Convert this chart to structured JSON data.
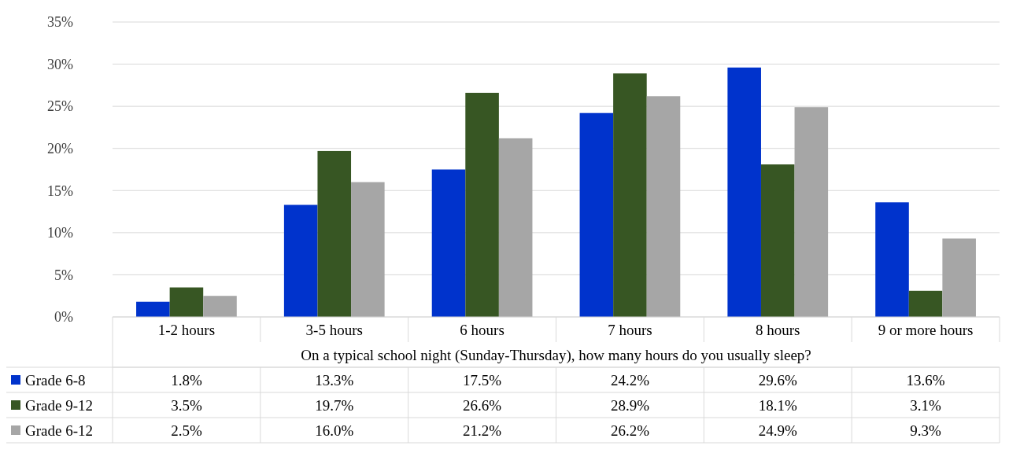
{
  "chart_data": {
    "type": "bar",
    "categories": [
      "1-2 hours",
      "3-5 hours",
      "6 hours",
      "7 hours",
      "8 hours",
      "9 or more hours"
    ],
    "xlabel": "On a typical school night (Sunday-Thursday), how many hours do you usually sleep?",
    "series": [
      {
        "name": "Grade 6-8",
        "color": "#0033cc",
        "values": [
          1.8,
          13.3,
          17.5,
          24.2,
          29.6,
          13.6
        ],
        "value_labels": [
          "1.8%",
          "13.3%",
          "17.5%",
          "24.2%",
          "29.6%",
          "13.6%"
        ]
      },
      {
        "name": "Grade 9-12",
        "color": "#375623",
        "values": [
          3.5,
          19.7,
          26.6,
          28.9,
          18.1,
          3.1
        ],
        "value_labels": [
          "3.5%",
          "19.7%",
          "26.6%",
          "28.9%",
          "18.1%",
          "3.1%"
        ]
      },
      {
        "name": "Grade 6-12",
        "color": "#a6a6a6",
        "values": [
          2.5,
          16.0,
          21.2,
          26.2,
          24.9,
          9.3
        ],
        "value_labels": [
          "2.5%",
          "16.0%",
          "21.2%",
          "26.2%",
          "24.9%",
          "9.3%"
        ]
      }
    ],
    "ylim": [
      0,
      35
    ],
    "yticks": [
      {
        "value": 0,
        "label": "0%"
      },
      {
        "value": 5,
        "label": "5%"
      },
      {
        "value": 10,
        "label": "10%"
      },
      {
        "value": 15,
        "label": "15%"
      },
      {
        "value": 20,
        "label": "20%"
      },
      {
        "value": 25,
        "label": "25%"
      },
      {
        "value": 30,
        "label": "30%"
      },
      {
        "value": 35,
        "label": "35%"
      }
    ],
    "grid": "y",
    "legend": "bottom"
  }
}
